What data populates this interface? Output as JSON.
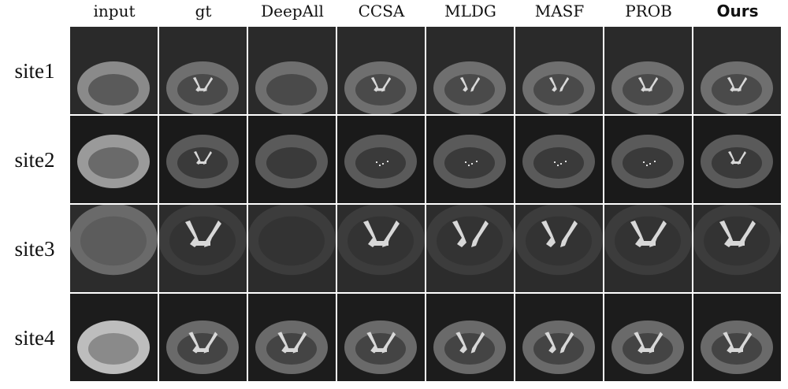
{
  "columns": [
    {
      "label": "input",
      "bold": false
    },
    {
      "label": "gt",
      "bold": false
    },
    {
      "label": "DeepAll",
      "bold": false
    },
    {
      "label": "CCSA",
      "bold": false
    },
    {
      "label": "MLDG",
      "bold": false
    },
    {
      "label": "MASF",
      "bold": false
    },
    {
      "label": "PROB",
      "bold": false
    },
    {
      "label": "Ours",
      "bold": true
    }
  ],
  "rows": [
    {
      "label": "site1"
    },
    {
      "label": "site2"
    },
    {
      "label": "site3"
    },
    {
      "label": "site4"
    }
  ]
}
